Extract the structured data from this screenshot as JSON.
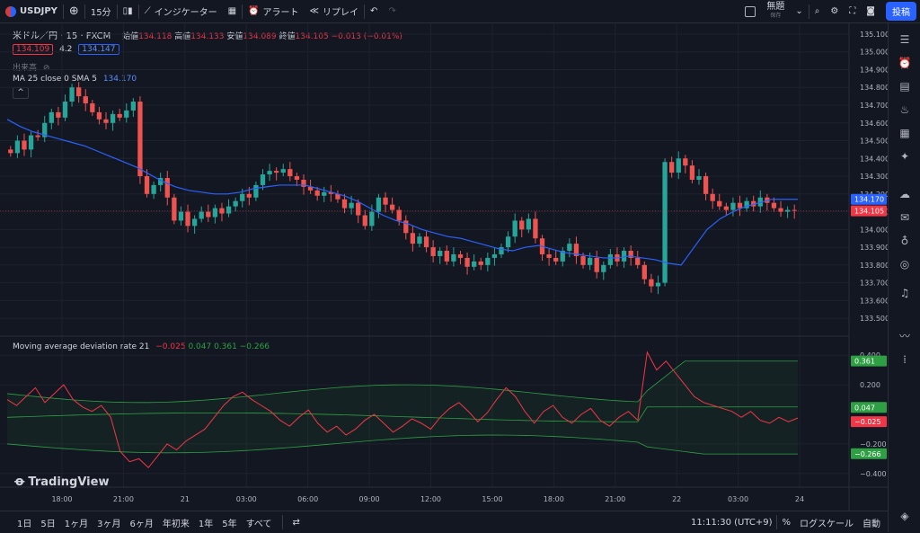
{
  "topbar": {
    "symbol": "USDJPY",
    "interval": "15分",
    "indicators": "インジケーター",
    "alert": "アラート",
    "replay": "リプレイ",
    "layout_name": "無題",
    "layout_sub": "保存",
    "post": "投稿"
  },
  "legend": {
    "title": "米ドル／円 · 15 · FXCM",
    "open_label": "始値",
    "open": "134.118",
    "high_label": "高値",
    "high": "134.133",
    "low_label": "安値",
    "low": "134.089",
    "close_label": "終値",
    "close": "134.105",
    "change": "−0.013 (−0.01%)",
    "bid": "134.109",
    "spread": "4.2",
    "ask": "134.147",
    "volume_label": "出来高",
    "ma_label": "MA 25 close 0 SMA 5",
    "ma_value": "134.170",
    "mad_label": "Moving average deviation rate 21",
    "mad_v1": "−0.025",
    "mad_v2": "0.047",
    "mad_v3": "0.361",
    "mad_v4": "−0.266"
  },
  "price_axis": {
    "ticks": [
      "135.100",
      "135.000",
      "134.900",
      "134.800",
      "134.700",
      "134.600",
      "134.500",
      "134.400",
      "134.300",
      "134.200",
      "134.100",
      "134.000",
      "133.900",
      "133.800",
      "133.700",
      "133.600",
      "133.500"
    ],
    "ma_tag": "134.170",
    "close_tag": "134.105"
  },
  "osc_axis": {
    "ticks": [
      "0.400",
      "0.200",
      "−0.200",
      "−0.400"
    ],
    "tags": [
      "0.361",
      "0.047",
      "−0.025",
      "−0.266"
    ]
  },
  "time_axis": [
    "18:00",
    "21:00",
    "21",
    "03:00",
    "06:00",
    "09:00",
    "12:00",
    "15:00",
    "18:00",
    "21:00",
    "22",
    "03:00",
    "24"
  ],
  "bottombar": {
    "ranges": [
      "1日",
      "5日",
      "1ヶ月",
      "3ヶ月",
      "6ヶ月",
      "年初来",
      "1年",
      "5年",
      "すべて"
    ],
    "time": "11:11:30 (UTC+9)",
    "percent": "%",
    "log": "ログスケール",
    "auto": "自動"
  },
  "watermark": "TradingView",
  "colors": {
    "up": "#26a69a",
    "down": "#ef5350",
    "ma": "#2962ff",
    "bg": "#131722",
    "band": "#2ea043",
    "osc": "#f23645"
  },
  "chart_data": {
    "type": "candlestick",
    "ylim": [
      133.45,
      135.12
    ],
    "closes": [
      134.43,
      134.5,
      134.45,
      134.53,
      134.52,
      134.6,
      134.66,
      134.63,
      134.72,
      134.8,
      134.75,
      134.71,
      134.66,
      134.62,
      134.6,
      134.65,
      134.63,
      134.67,
      134.72,
      134.3,
      134.2,
      134.25,
      134.29,
      134.18,
      134.05,
      134.1,
      134.02,
      134.06,
      134.1,
      134.07,
      134.12,
      134.09,
      134.13,
      134.16,
      134.2,
      134.18,
      134.25,
      134.31,
      134.33,
      134.32,
      134.34,
      134.3,
      134.28,
      134.24,
      134.22,
      134.19,
      134.21,
      134.2,
      134.17,
      134.12,
      134.15,
      134.08,
      134.02,
      134.1,
      134.18,
      134.14,
      134.11,
      134.05,
      133.98,
      133.92,
      133.96,
      133.9,
      133.85,
      133.88,
      133.82,
      133.86,
      133.84,
      133.79,
      133.82,
      133.8,
      133.84,
      133.86,
      133.9,
      133.96,
      134.05,
      134.0,
      134.06,
      133.95,
      133.86,
      133.84,
      133.82,
      133.88,
      133.92,
      133.85,
      133.8,
      133.84,
      133.76,
      133.8,
      133.86,
      133.82,
      133.88,
      133.84,
      133.8,
      133.72,
      133.68,
      133.7,
      134.38,
      134.32,
      134.4,
      134.36,
      134.28,
      134.3,
      134.2,
      134.16,
      134.13,
      134.11,
      134.15,
      134.12,
      134.16,
      134.13,
      134.18,
      134.15,
      134.12,
      134.1,
      134.11,
      134.105
    ],
    "ma": [
      134.62,
      134.58,
      134.55,
      134.53,
      134.51,
      134.49,
      134.47,
      134.44,
      134.41,
      134.38,
      134.35,
      134.31,
      134.27,
      134.24,
      134.22,
      134.21,
      134.2,
      134.2,
      134.21,
      134.23,
      134.24,
      134.25,
      134.25,
      134.25,
      134.23,
      134.21,
      134.19,
      134.16,
      134.12,
      134.08,
      134.05,
      134.03,
      134.0,
      133.98,
      133.96,
      133.95,
      133.93,
      133.91,
      133.89,
      133.88,
      133.9,
      133.91,
      133.89,
      133.87,
      133.86,
      133.85,
      133.84,
      133.84,
      133.85,
      133.84,
      133.83,
      133.81,
      133.8,
      133.9,
      134.0,
      134.06,
      134.1,
      134.13,
      134.15,
      134.17,
      134.17,
      134.17
    ],
    "osc": [
      0.1,
      0.06,
      0.12,
      0.18,
      0.08,
      0.14,
      0.2,
      0.1,
      0.05,
      0.02,
      0.06,
      -0.02,
      -0.25,
      -0.32,
      -0.3,
      -0.36,
      -0.28,
      -0.2,
      -0.24,
      -0.18,
      -0.14,
      -0.1,
      -0.02,
      0.06,
      0.12,
      0.15,
      0.1,
      0.06,
      0.02,
      -0.04,
      -0.08,
      -0.02,
      0.03,
      -0.06,
      -0.12,
      -0.08,
      -0.14,
      -0.1,
      -0.04,
      0.0,
      -0.06,
      -0.12,
      -0.08,
      -0.03,
      -0.06,
      -0.1,
      -0.02,
      0.04,
      0.08,
      0.02,
      -0.05,
      0.01,
      0.1,
      0.18,
      0.12,
      0.02,
      -0.06,
      0.02,
      0.06,
      -0.02,
      -0.06,
      0.0,
      0.04,
      -0.04,
      -0.08,
      -0.02,
      0.02,
      -0.04,
      0.42,
      0.3,
      0.36,
      0.28,
      0.2,
      0.12,
      0.08,
      0.06,
      0.04,
      0.02,
      -0.02,
      0.02,
      -0.04,
      -0.06,
      -0.02,
      -0.05,
      -0.025
    ]
  }
}
